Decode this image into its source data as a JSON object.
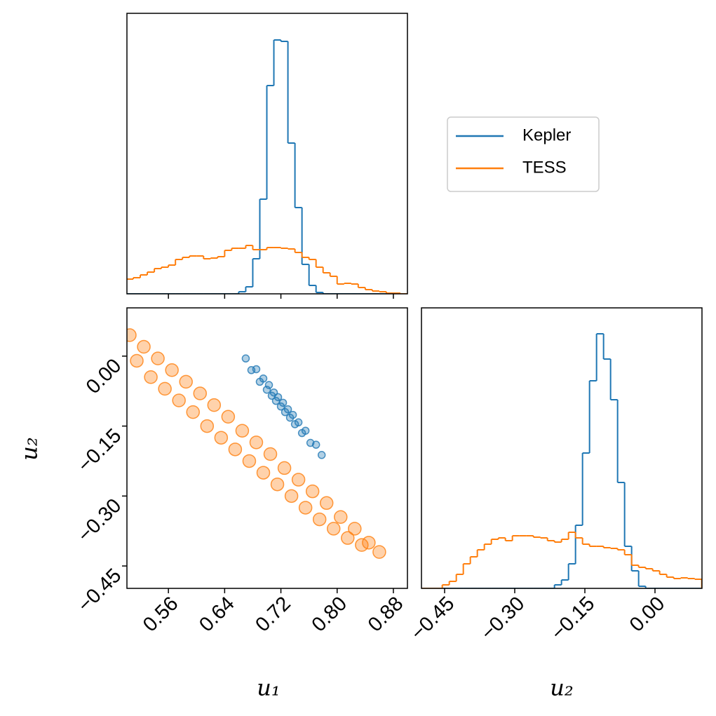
{
  "chart_data": [
    {
      "type": "histogram",
      "bins": [
        0.5,
        0.51,
        0.52,
        0.53,
        0.54,
        0.55,
        0.56,
        0.57,
        0.58,
        0.59,
        0.6,
        0.61,
        0.62,
        0.63,
        0.64,
        0.65,
        0.66,
        0.67,
        0.68,
        0.69,
        0.7,
        0.71,
        0.72,
        0.73,
        0.74,
        0.75,
        0.76,
        0.77,
        0.78,
        0.79,
        0.8,
        0.81,
        0.82,
        0.83,
        0.84,
        0.85,
        0.86,
        0.87,
        0.88,
        0.89,
        0.9
      ],
      "series": [
        {
          "name": "Kepler",
          "color": "#1f77b4",
          "values": [
            0,
            0,
            0,
            0,
            0,
            0,
            0,
            0,
            0,
            0,
            0,
            0,
            0,
            0,
            0,
            0,
            3,
            10,
            50,
            135,
            297,
            362,
            360,
            215,
            123,
            42,
            12,
            2,
            0,
            0,
            0,
            0,
            0,
            0,
            0,
            0,
            0,
            0,
            0,
            0
          ]
        },
        {
          "name": "TESS",
          "color": "#ff7f0e",
          "values": [
            21,
            23,
            27,
            31,
            36,
            38,
            41,
            49,
            52,
            54,
            54,
            50,
            51,
            53,
            62,
            65,
            65,
            69,
            63,
            63,
            66,
            66,
            65,
            64,
            59,
            52,
            49,
            38,
            30,
            25,
            14,
            15,
            14,
            9,
            6,
            4,
            3,
            1,
            1,
            0
          ]
        }
      ],
      "xlim": [
        0.501,
        0.9
      ],
      "ylim": [
        0,
        400
      ],
      "legend": "right"
    },
    {
      "type": "scatter",
      "xlabel": "u₁",
      "ylabel": "u₂",
      "xlim": [
        0.501,
        0.9
      ],
      "ylim": [
        -0.498,
        0.1035
      ],
      "xticks": [
        0.56,
        0.64,
        0.72,
        {
          "value": 0.8,
          "label": "0.80"
        },
        0.88
      ],
      "yticks": [
        {
          "value": 0,
          "label": "0.00"
        },
        {
          "value": -0.15,
          "label": "−0.15"
        },
        {
          "value": -0.3,
          "label": "−0.30"
        },
        {
          "value": -0.45,
          "label": "−0.45"
        }
      ],
      "series": [
        {
          "color": "#1f77b4",
          "x": [
            0.67,
            0.678,
            0.685,
            0.69,
            0.695,
            0.7,
            0.703,
            0.707,
            0.71,
            0.713,
            0.716,
            0.72,
            0.723,
            0.726,
            0.73,
            0.733,
            0.737,
            0.74,
            0.745,
            0.75,
            0.755,
            0.762,
            0.77,
            0.778
          ],
          "y": [
            -0.005,
            -0.03,
            -0.028,
            -0.055,
            -0.048,
            -0.072,
            -0.062,
            -0.085,
            -0.078,
            -0.096,
            -0.088,
            -0.108,
            -0.1,
            -0.12,
            -0.114,
            -0.132,
            -0.126,
            -0.146,
            -0.142,
            -0.165,
            -0.16,
            -0.186,
            -0.19,
            -0.212
          ]
        },
        {
          "color": "#ff7f0e",
          "x": [
            0.505,
            0.515,
            0.525,
            0.535,
            0.545,
            0.555,
            0.565,
            0.575,
            0.585,
            0.595,
            0.605,
            0.615,
            0.625,
            0.635,
            0.645,
            0.655,
            0.665,
            0.675,
            0.685,
            0.695,
            0.705,
            0.715,
            0.725,
            0.735,
            0.745,
            0.755,
            0.765,
            0.775,
            0.785,
            0.795,
            0.805,
            0.815,
            0.825,
            0.835,
            0.845,
            0.86
          ],
          "y": [
            0.045,
            -0.01,
            0.02,
            -0.045,
            -0.005,
            -0.07,
            -0.03,
            -0.095,
            -0.055,
            -0.12,
            -0.08,
            -0.15,
            -0.105,
            -0.175,
            -0.13,
            -0.2,
            -0.16,
            -0.225,
            -0.185,
            -0.25,
            -0.21,
            -0.275,
            -0.24,
            -0.3,
            -0.265,
            -0.325,
            -0.29,
            -0.35,
            -0.315,
            -0.37,
            -0.345,
            -0.39,
            -0.37,
            -0.405,
            -0.4,
            -0.42
          ]
        }
      ]
    },
    {
      "type": "histogram",
      "xlabel": "u₂",
      "bins": [
        -0.5,
        -0.485,
        -0.47,
        -0.455,
        -0.44,
        -0.425,
        -0.41,
        -0.395,
        -0.38,
        -0.365,
        -0.35,
        -0.335,
        -0.32,
        -0.305,
        -0.29,
        -0.275,
        -0.26,
        -0.245,
        -0.23,
        -0.215,
        -0.2,
        -0.185,
        -0.17,
        -0.155,
        -0.14,
        -0.125,
        -0.11,
        -0.095,
        -0.08,
        -0.065,
        -0.05,
        -0.035,
        -0.02,
        -0.005,
        0.01,
        0.025,
        0.04,
        0.055,
        0.07,
        0.085,
        0.1
      ],
      "series": [
        {
          "color": "#1f77b4",
          "values": [
            0,
            0,
            0,
            0,
            0,
            0,
            0,
            0,
            0,
            0,
            0,
            0,
            0,
            0,
            0,
            0,
            0,
            0,
            0,
            5,
            12,
            35,
            90,
            193,
            296,
            363,
            327,
            269,
            151,
            60,
            25,
            3,
            0,
            0,
            0,
            0,
            0,
            0,
            0,
            0
          ]
        },
        {
          "color": "#ff7f0e",
          "values": [
            0,
            0,
            0,
            5,
            10,
            20,
            35,
            45,
            55,
            63,
            70,
            72,
            68,
            75,
            75,
            75,
            73,
            72,
            68,
            66,
            70,
            80,
            72,
            63,
            60,
            60,
            58,
            57,
            55,
            48,
            33,
            30,
            28,
            25,
            20,
            16,
            14,
            15,
            14,
            13
          ]
        }
      ],
      "xlim": [
        -0.4995,
        0.1005
      ],
      "xticks": [
        {
          "value": -0.45,
          "label": "−0.45"
        },
        {
          "value": -0.3,
          "label": "−0.30"
        },
        {
          "value": -0.15,
          "label": "−0.15"
        },
        {
          "value": 0,
          "label": "0.00"
        }
      ],
      "ylim": [
        0,
        400
      ]
    }
  ]
}
